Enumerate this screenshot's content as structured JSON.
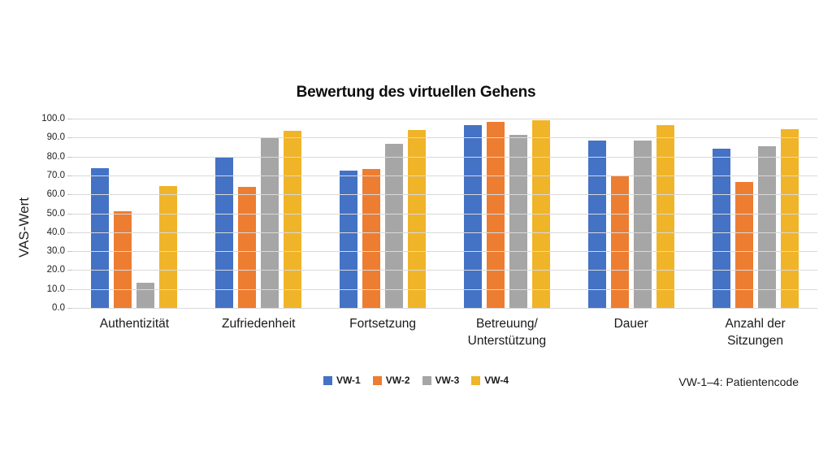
{
  "footnote": "VW-1–4: Patientencode",
  "chart_data": {
    "type": "bar",
    "title": "Bewertung des virtuellen Gehens",
    "xlabel": "",
    "ylabel": "VAS-Wert",
    "ylim": [
      0,
      100
    ],
    "ytick_step": 10,
    "ytick_format": "one_decimal",
    "grid": true,
    "grid_color": "#d9d9d9",
    "legend_position": "bottom",
    "categories": [
      "Authentizität",
      "Zufriedenheit",
      "Fortsetzung",
      "Betreuung/\nUnterstützung",
      "Dauer",
      "Anzahl der\nSitzungen"
    ],
    "series": [
      {
        "name": "VW-1",
        "color": "#4472C4",
        "values": [
          74.0,
          79.5,
          72.5,
          96.5,
          88.5,
          84.0
        ]
      },
      {
        "name": "VW-2",
        "color": "#ED7D31",
        "values": [
          51.0,
          64.0,
          73.5,
          98.5,
          70.0,
          66.5
        ]
      },
      {
        "name": "VW-3",
        "color": "#A6A6A6",
        "values": [
          13.5,
          90.0,
          86.5,
          91.5,
          88.5,
          85.5
        ]
      },
      {
        "name": "VW-4",
        "color": "#F0B429",
        "values": [
          64.5,
          93.5,
          94.0,
          99.0,
          96.5,
          94.5
        ]
      }
    ]
  }
}
